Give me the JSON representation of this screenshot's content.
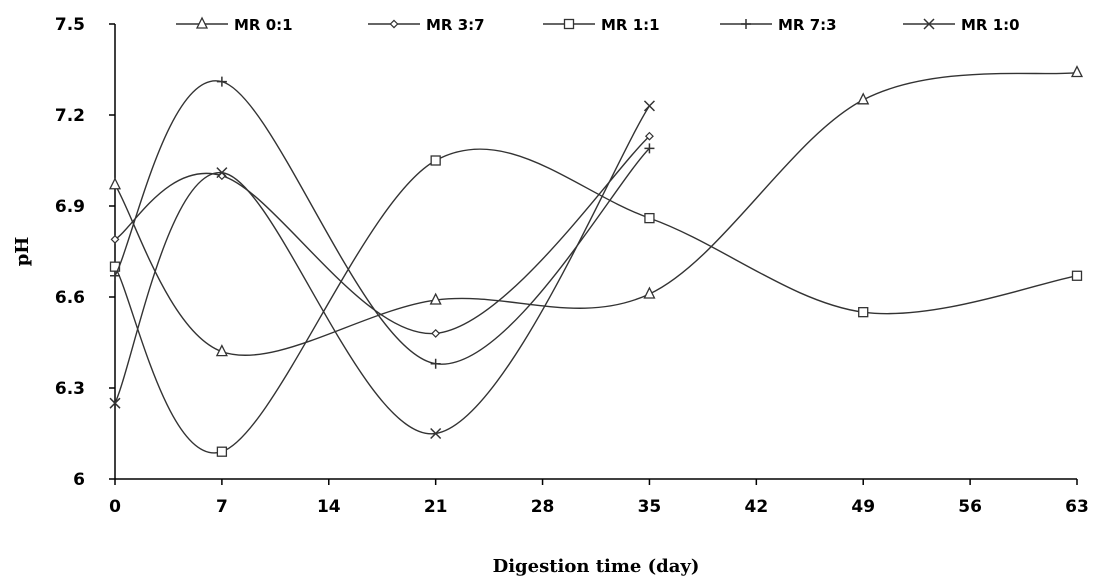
{
  "chart_data": {
    "type": "line",
    "title": "",
    "xlabel": "Digestion time (day)",
    "ylabel": "pH",
    "xlim": [
      0,
      63
    ],
    "ylim": [
      6,
      7.5
    ],
    "xticks": [
      0,
      7,
      14,
      21,
      28,
      35,
      42,
      49,
      56,
      63
    ],
    "yticks": [
      6,
      6.3,
      6.6,
      6.9,
      7.2,
      7.5
    ],
    "ytick_labels": [
      "6",
      "6.3",
      "6.6",
      "6.9",
      "7.2",
      "7.5"
    ],
    "legend_position": "top",
    "line_color": "#333333",
    "series": [
      {
        "name": "MR 0:1",
        "marker": "triangle",
        "x": [
          0,
          7,
          21,
          35,
          49,
          63
        ],
        "y": [
          6.97,
          6.42,
          6.59,
          6.61,
          7.25,
          7.34
        ]
      },
      {
        "name": "MR 3:7",
        "marker": "diamond",
        "x": [
          0,
          7,
          21,
          35
        ],
        "y": [
          6.79,
          7.0,
          6.48,
          7.13
        ]
      },
      {
        "name": "MR 1:1",
        "marker": "square",
        "x": [
          0,
          7,
          21,
          35,
          49,
          63
        ],
        "y": [
          6.7,
          6.09,
          7.05,
          6.86,
          6.55,
          6.67
        ]
      },
      {
        "name": "MR 7:3",
        "marker": "plus",
        "x": [
          0,
          7,
          21,
          35
        ],
        "y": [
          6.67,
          7.31,
          6.38,
          7.09
        ]
      },
      {
        "name": "MR 1:0",
        "marker": "cross",
        "x": [
          0,
          7,
          21,
          35
        ],
        "y": [
          6.25,
          7.01,
          6.15,
          7.23
        ]
      }
    ]
  }
}
